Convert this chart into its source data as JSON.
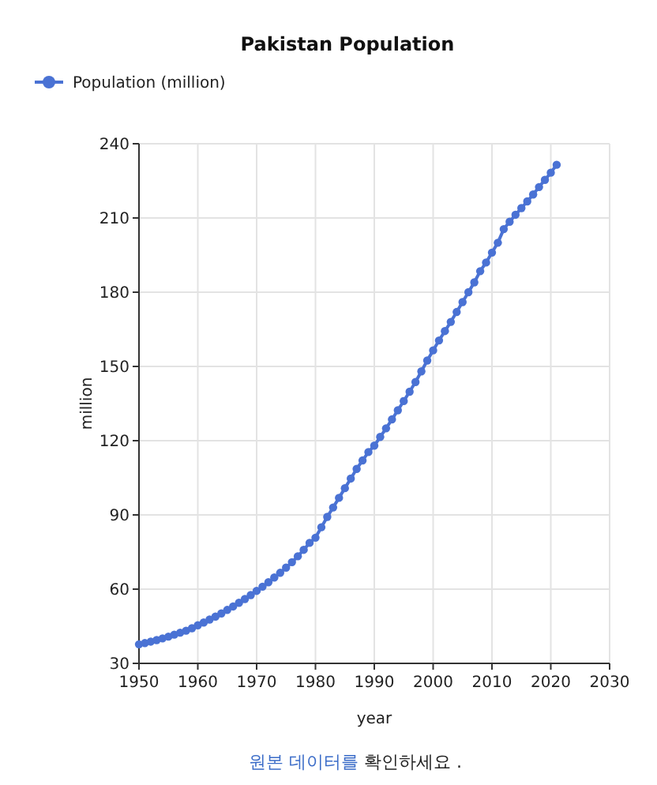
{
  "chart_data": {
    "type": "line",
    "title": "Pakistan Population",
    "xlabel": "year",
    "ylabel": "million",
    "annotations": [
      "원본 데이터를",
      "확인하세요 ."
    ],
    "x": [
      1950,
      1951,
      1952,
      1953,
      1954,
      1955,
      1956,
      1957,
      1958,
      1959,
      1960,
      1961,
      1962,
      1963,
      1964,
      1965,
      1966,
      1967,
      1968,
      1969,
      1970,
      1971,
      1972,
      1973,
      1974,
      1975,
      1976,
      1977,
      1978,
      1979,
      1980,
      1981,
      1982,
      1983,
      1984,
      1985,
      1986,
      1987,
      1988,
      1989,
      1990,
      1991,
      1992,
      1993,
      1994,
      1995,
      1996,
      1997,
      1998,
      1999,
      2000,
      2001,
      2002,
      2003,
      2004,
      2005,
      2006,
      2007,
      2008,
      2009,
      2010,
      2011,
      2012,
      2013,
      2014,
      2015,
      2016,
      2017,
      2018,
      2019,
      2020,
      2021
    ],
    "series": [
      {
        "name": "Population (million)",
        "color": "#4a72d4",
        "values": [
          37.7,
          38.2,
          38.8,
          39.4,
          40.1,
          40.8,
          41.6,
          42.4,
          43.2,
          44.2,
          45.4,
          46.5,
          47.7,
          48.9,
          50.2,
          51.6,
          53.0,
          54.5,
          56.0,
          57.6,
          59.3,
          61.0,
          62.8,
          64.7,
          66.6,
          68.7,
          70.9,
          73.3,
          75.9,
          78.7,
          80.8,
          85.0,
          89.2,
          93.0,
          96.9,
          100.8,
          104.7,
          108.6,
          112.0,
          115.4,
          118.0,
          121.5,
          125.0,
          128.6,
          132.3,
          136.0,
          139.8,
          143.7,
          148.0,
          152.4,
          156.5,
          160.5,
          164.3,
          168.0,
          172.0,
          176.0,
          180.0,
          184.0,
          188.5,
          192.0,
          196.0,
          200.0,
          205.5,
          208.5,
          211.3,
          214.0,
          216.7,
          219.5,
          222.5,
          225.4,
          228.3,
          231.5
        ]
      }
    ],
    "xlim": [
      1950,
      2030
    ],
    "xticks": [
      1950,
      1960,
      1970,
      1980,
      1990,
      2000,
      2010,
      2020,
      2030
    ],
    "ylim": [
      30,
      240
    ],
    "yticks": [
      30,
      60,
      90,
      120,
      150,
      180,
      210,
      240
    ],
    "grid": true,
    "legend": "top left",
    "marker": "circle",
    "line_style": "solid"
  }
}
